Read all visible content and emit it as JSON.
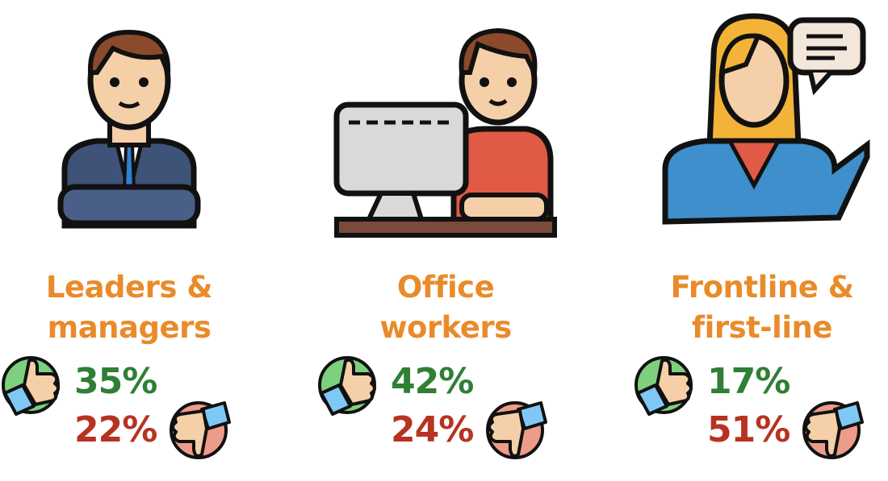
{
  "colors": {
    "title": "#E98B2A",
    "positive": "#2F7F35",
    "negative": "#B83222"
  },
  "groups": [
    {
      "title_line1": "Leaders &",
      "title_line2": "managers",
      "positive": "35%",
      "negative": "22%",
      "illustration": "businessman-arms-crossed-icon"
    },
    {
      "title_line1": "Office",
      "title_line2": "workers",
      "positive": "42%",
      "negative": "24%",
      "illustration": "office-worker-computer-icon"
    },
    {
      "title_line1": "Frontline &",
      "title_line2": "first-line",
      "positive": "17%",
      "negative": "51%",
      "illustration": "woman-speech-bubble-icon"
    }
  ]
}
